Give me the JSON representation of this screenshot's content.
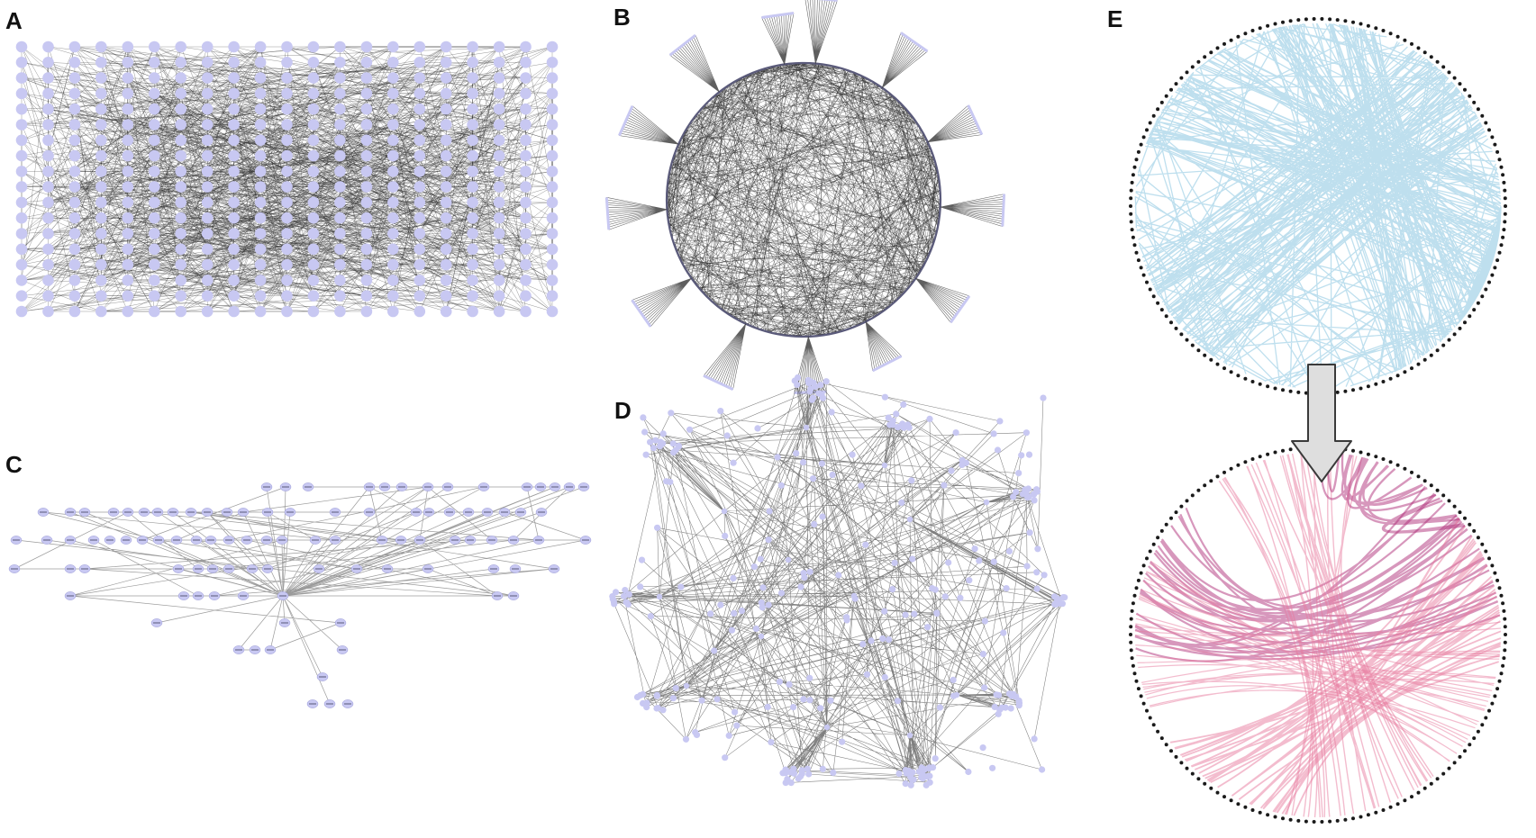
{
  "panels": [
    {
      "id": "A",
      "label": "A",
      "layout": "grid"
    },
    {
      "id": "B",
      "label": "B",
      "layout": "circle-with-fans"
    },
    {
      "id": "C",
      "label": "C",
      "layout": "hierarchical"
    },
    {
      "id": "D",
      "label": "D",
      "layout": "force-directed"
    },
    {
      "id": "E",
      "label": "E",
      "layout": "circular-edge-bundling"
    }
  ],
  "colors": {
    "node": "#c8c8f2",
    "edge": "#2a2a2a",
    "edge_light": "#8a8a8a",
    "circle_blue": "#6fb8d9",
    "bundle_pink": "#e7799e",
    "bundle_magenta": "#b0307a",
    "dotted_border": "#1a1a1a",
    "arrow_fill": "#dedede",
    "arrow_stroke": "#3a3a3a"
  },
  "icons": {
    "transform_arrow": "down-arrow-icon"
  }
}
